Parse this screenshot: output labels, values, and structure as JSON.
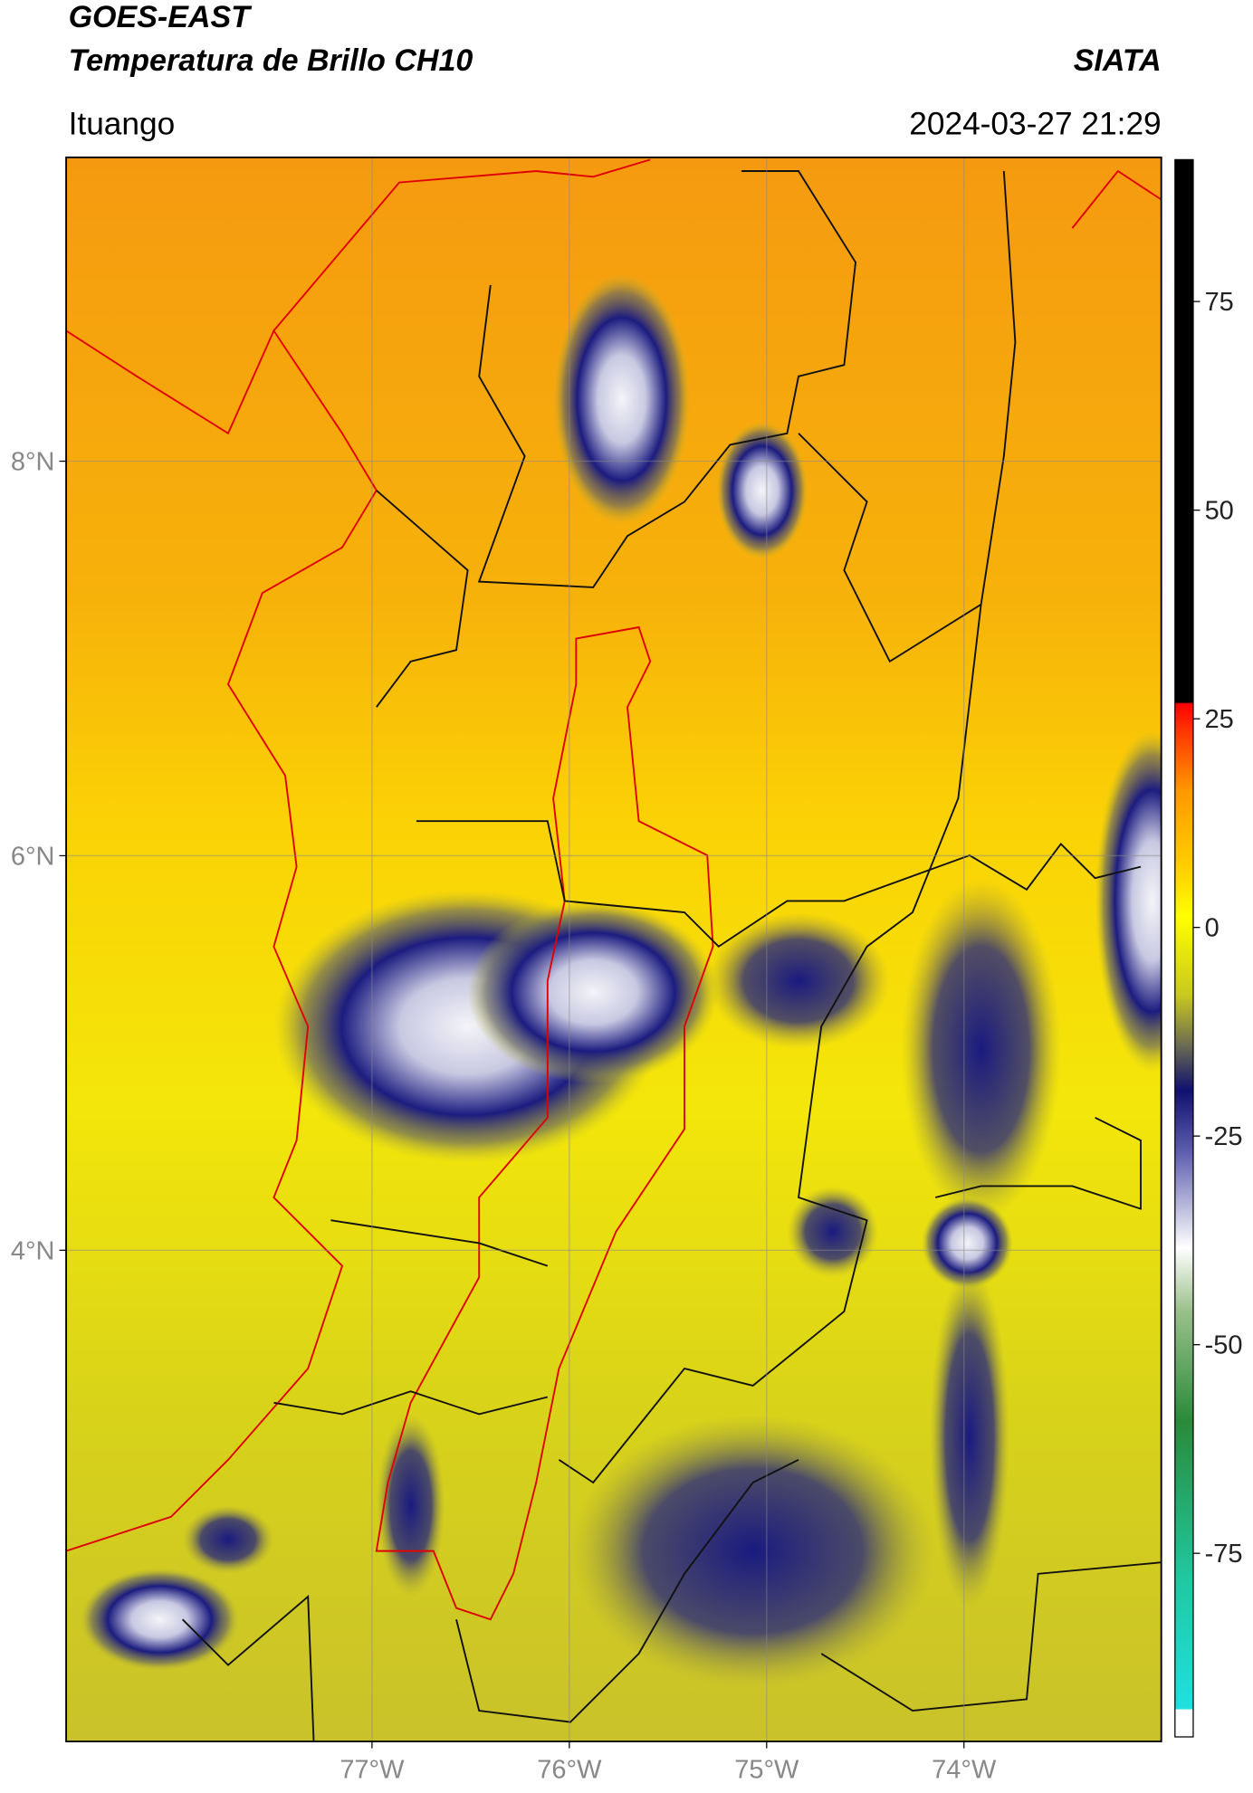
{
  "header": {
    "title": "GOES-EAST",
    "subtitle": "Temperatura de Brillo CH10",
    "agency": "SIATA",
    "location": "Ituango",
    "timestamp": "2024-03-27 21:29"
  },
  "map": {
    "lon_range": [
      -78.55,
      -73.0
    ],
    "lat_range": [
      1.51,
      9.54
    ],
    "lon_ticks": [
      {
        "value": -77,
        "label": "77°W"
      },
      {
        "value": -76,
        "label": "76°W"
      },
      {
        "value": -75,
        "label": "75°W"
      },
      {
        "value": -74,
        "label": "74°W"
      }
    ],
    "lat_ticks": [
      {
        "value": 8,
        "label": "8°N"
      },
      {
        "value": 6,
        "label": "6°N"
      },
      {
        "value": 4,
        "label": "4°N"
      }
    ]
  },
  "colorbar": {
    "range": [
      -97,
      92
    ],
    "ticks": [
      75,
      50,
      25,
      0,
      -25,
      -50,
      -75
    ]
  }
}
